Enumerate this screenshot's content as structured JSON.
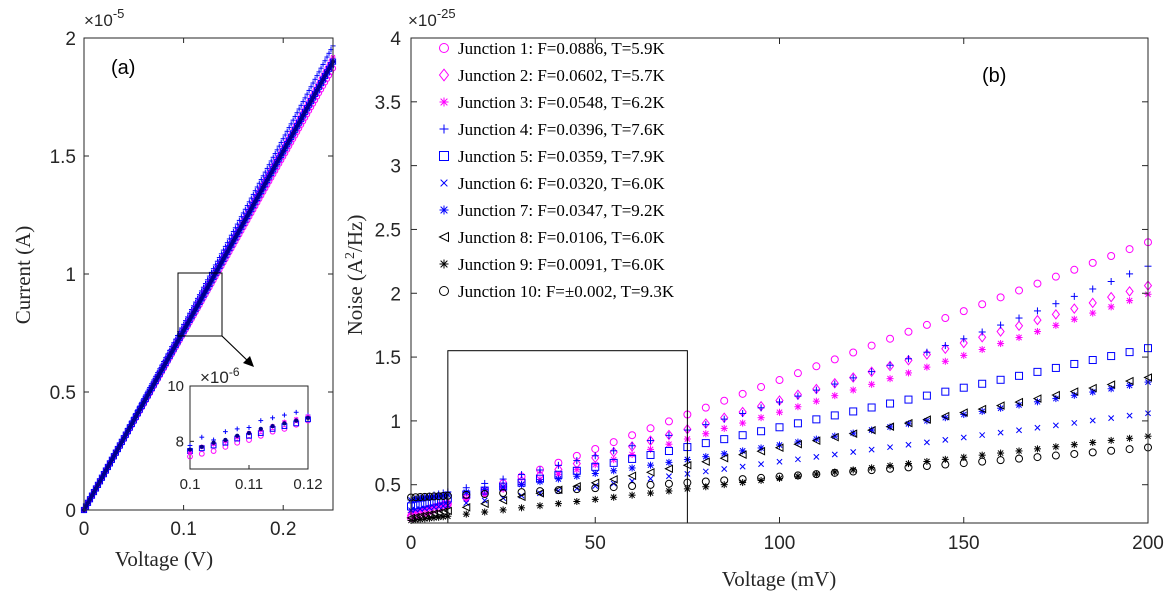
{
  "chart_data": [
    {
      "panel": "(a)",
      "type": "scatter",
      "xlabel": "Voltage (V)",
      "ylabel": "Current (A)",
      "y_exponent": "×10",
      "y_exponent_power": "-5",
      "xlim": [
        0,
        0.25
      ],
      "ylim": [
        0,
        2e-05
      ],
      "xticks": [
        "0",
        "0.1",
        "0.2"
      ],
      "yticks": [
        "0",
        "0.5",
        "1",
        "1.5",
        "2"
      ],
      "slope_A_per_V": 7.6e-05,
      "colors": {
        "magenta": "#ff00ff",
        "blue": "#0000ff",
        "darkblue": "#00008b"
      },
      "inset": {
        "y_exponent": "×10",
        "y_exponent_power": "-6",
        "xlim": [
          0.1,
          0.12
        ],
        "ylim": [
          7e-06,
          1e-05
        ],
        "xticks": [
          "0.1",
          "0.11",
          "0.12"
        ],
        "yticks": [
          "8",
          "10"
        ],
        "series": [
          {
            "marker": "circle",
            "color": "#ff00ff",
            "x": [
              0.1,
              0.102,
              0.104,
              0.106,
              0.108,
              0.11,
              0.112,
              0.114,
              0.116,
              0.118,
              0.12
            ],
            "y": [
              7.45,
              7.55,
              7.65,
              7.8,
              7.95,
              8.05,
              8.2,
              8.35,
              8.45,
              8.6,
              8.75
            ]
          },
          {
            "marker": "plus",
            "color": "#0000ff",
            "x": [
              0.1,
              0.102,
              0.104,
              0.106,
              0.108,
              0.11,
              0.112,
              0.114,
              0.116,
              0.118,
              0.12
            ],
            "y": [
              7.85,
              8.15,
              8.05,
              8.35,
              8.45,
              8.5,
              8.75,
              8.85,
              8.95,
              9.05,
              8.95
            ]
          },
          {
            "marker": "square",
            "color": "#0000ff",
            "x": [
              0.1,
              0.102,
              0.104,
              0.106,
              0.108,
              0.11,
              0.112,
              0.114,
              0.116,
              0.118,
              0.12
            ],
            "y": [
              7.65,
              7.75,
              7.85,
              7.95,
              8.1,
              8.2,
              8.3,
              8.45,
              8.55,
              8.65,
              8.8
            ]
          },
          {
            "marker": "star",
            "color": "#ff00ff",
            "x": [
              0.1,
              0.102,
              0.104,
              0.106,
              0.108,
              0.11,
              0.112,
              0.114,
              0.116,
              0.118,
              0.12
            ],
            "y": [
              7.6,
              7.8,
              7.9,
              8.0,
              8.15,
              8.3,
              8.4,
              8.55,
              8.7,
              8.8,
              8.9
            ]
          },
          {
            "marker": "dot",
            "color": "#00008b",
            "x": [
              0.1,
              0.102,
              0.104,
              0.106,
              0.108,
              0.11,
              0.112,
              0.114,
              0.116,
              0.118,
              0.12
            ],
            "y": [
              7.7,
              7.8,
              7.95,
              8.05,
              8.2,
              8.3,
              8.45,
              8.55,
              8.65,
              8.75,
              8.85
            ]
          }
        ]
      }
    },
    {
      "panel": "(b)",
      "type": "scatter",
      "xlabel": "Voltage (mV)",
      "ylabel": "Noise (A",
      "ylabel_sup": "2",
      "ylabel_end": "/Hz)",
      "y_exponent": "×10",
      "y_exponent_power": "-25",
      "xlim": [
        0,
        200
      ],
      "ylim": [
        0.2,
        4
      ],
      "xticks": [
        "0",
        "50",
        "100",
        "150",
        "200"
      ],
      "yticks": [
        "0.5",
        "1",
        "1.5",
        "2",
        "2.5",
        "3",
        "3.5",
        "4"
      ],
      "legend_position": "top-left",
      "series": [
        {
          "name": "Junction 1: F=0.0886, T=5.9K",
          "marker": "circle",
          "color": "#ff00ff",
          "y0": 0.24,
          "a": 1.08,
          "b": 0.0
        },
        {
          "name": "Junction 2: F=0.0602, T=5.7K",
          "marker": "diamond",
          "color": "#ff00ff",
          "y0": 0.26,
          "a": 0.9,
          "b": 0.0,
          "sat": 2.08
        },
        {
          "name": "Junction 3: F=0.0548, T=6.2K",
          "marker": "star",
          "color": "#ff00ff",
          "y0": 0.28,
          "a": 0.72,
          "b": 0.0068
        },
        {
          "name": "Junction 4: F=0.0396, T=7.6K",
          "marker": "plus",
          "color": "#0000ff",
          "y0": 0.38,
          "a": 0.62,
          "b": 0.0148
        },
        {
          "name": "Junction 5: F=0.0359, T=7.9K",
          "marker": "square",
          "color": "#0000ff",
          "y0": 0.33,
          "a": 0.62,
          "b": 0.0
        },
        {
          "name": "Junction 6: F=0.0320, T=6.0K",
          "marker": "x",
          "color": "#0000ff",
          "y0": 0.3,
          "a": 0.38,
          "b": 0.0
        },
        {
          "name": "Junction 7: F=0.0347, T=9.2K",
          "marker": "star",
          "color": "#0000ff",
          "y0": 0.38,
          "a": 0.4,
          "b": 0.0031
        },
        {
          "name": "Junction 8: F=0.0106, T=6.0K",
          "marker": "triangle-left",
          "color": "#000000",
          "y0": 0.24,
          "a": 0.55,
          "b": 0.0
        },
        {
          "name": "Junction 9: F=0.0091, T=6.0K",
          "marker": "star",
          "color": "#000000",
          "y0": 0.22,
          "a": 0.33,
          "b": 0.0
        },
        {
          "name": "Junction 10: F=±0.002, T=9.3K",
          "marker": "circle",
          "color": "#000000",
          "y0": 0.4,
          "a": 0.13,
          "b": 0.0033
        }
      ],
      "zoom_box_x": [
        10,
        75
      ],
      "zoom_box_y": [
        0.2,
        1.55
      ]
    }
  ]
}
